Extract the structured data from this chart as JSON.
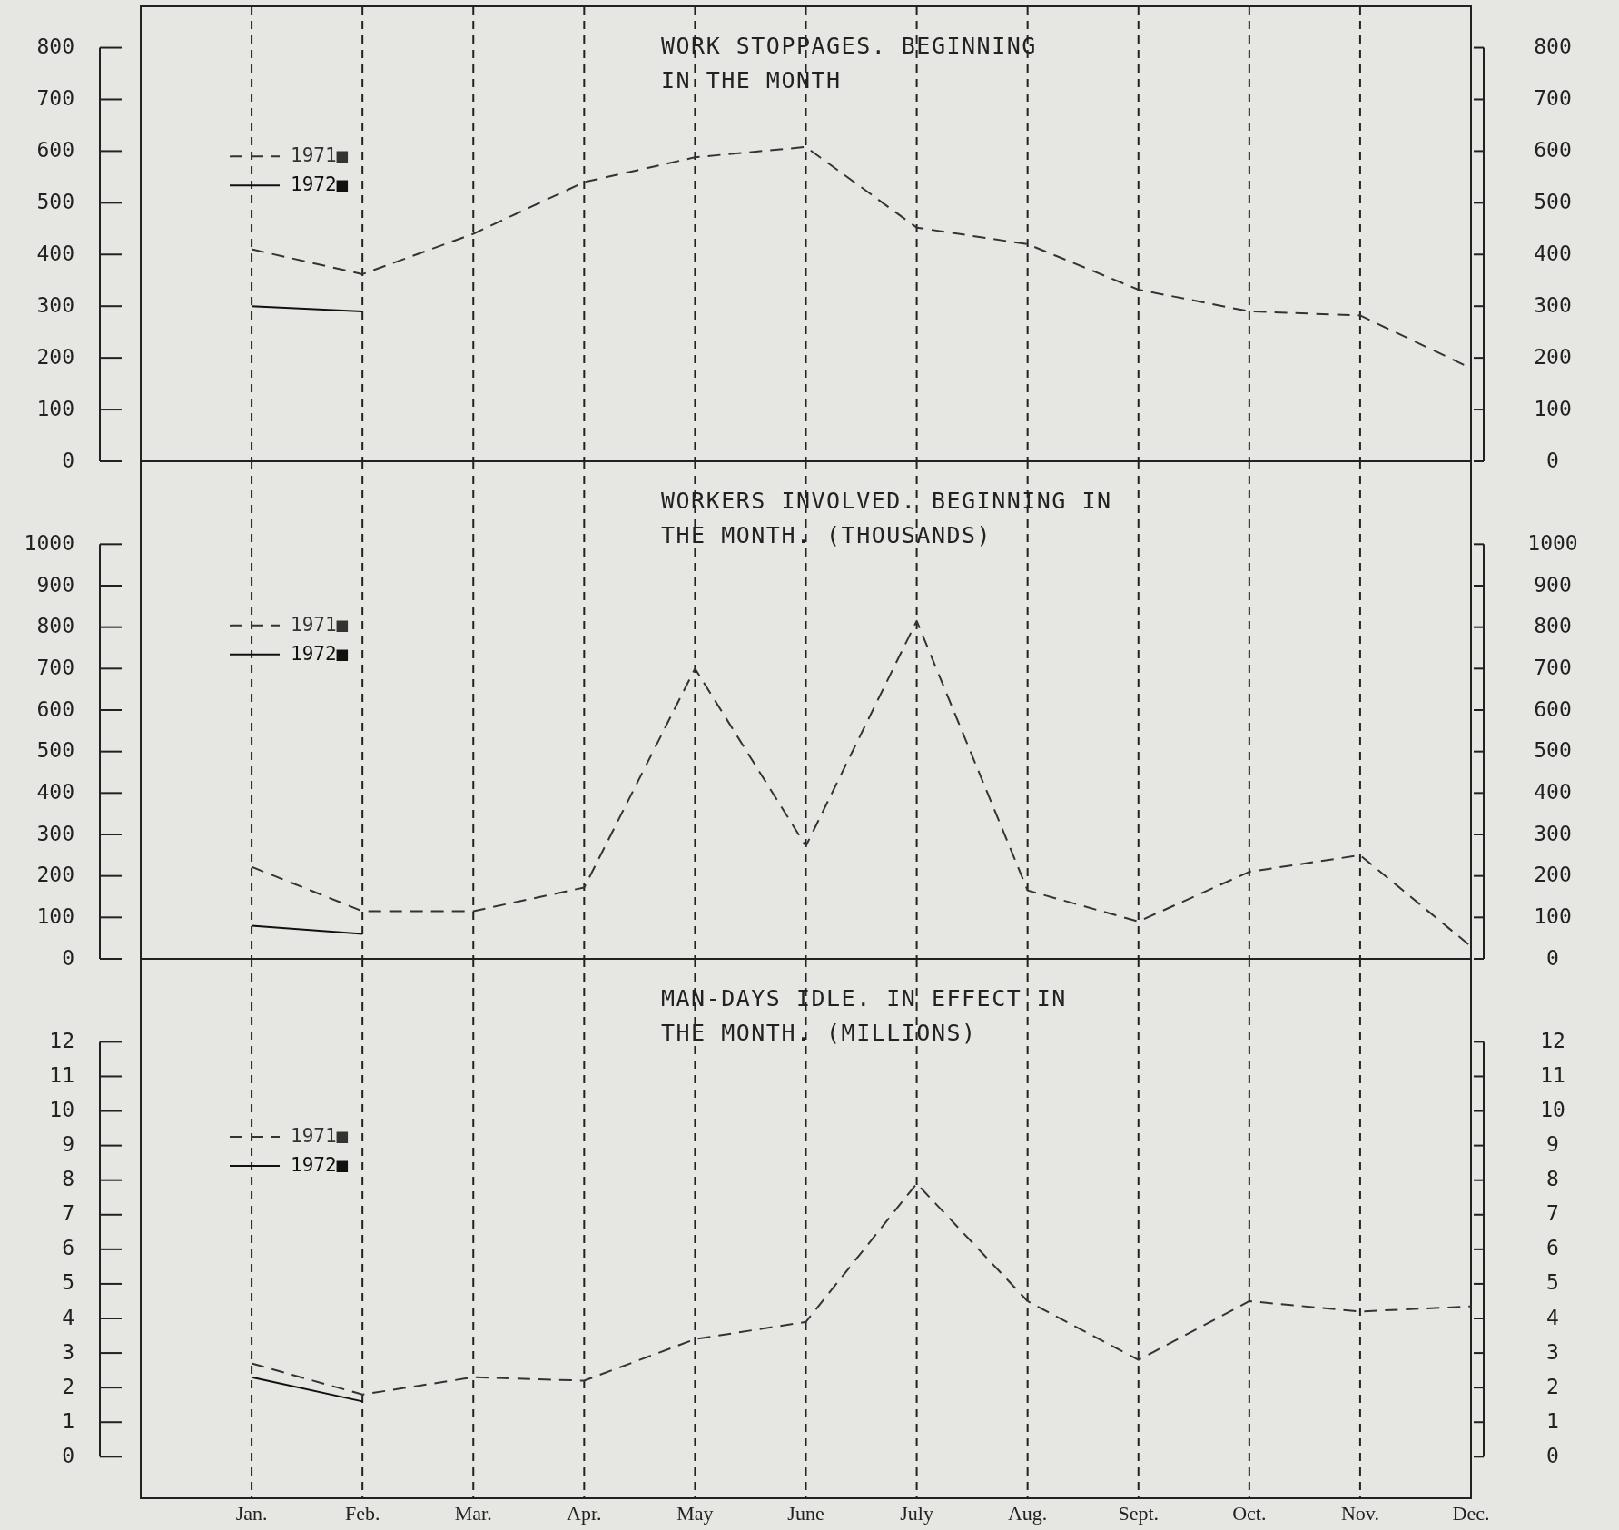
{
  "chart_data": [
    {
      "type": "line",
      "title": "WORK STOPPAGES. BEGINNING\nIN THE MONTH",
      "ylim": [
        0,
        880
      ],
      "yticks": [
        0,
        100,
        200,
        300,
        400,
        500,
        600,
        700,
        800
      ],
      "y2lim": [
        0,
        880
      ],
      "y2ticks": [
        0,
        100,
        200,
        300,
        400,
        500,
        600,
        700,
        800
      ],
      "grid": "x",
      "legend": "top left",
      "tick_labels": "y",
      "series": [
        {
          "name": "1971■",
          "color": "#333333",
          "line_style": "dashed",
          "values": [
            410,
            362,
            440,
            540,
            588,
            608,
            452,
            420,
            332,
            290,
            282,
            180
          ]
        },
        {
          "name": "1972■",
          "color": "#111111",
          "line_style": "solid",
          "values": [
            300,
            290,
            null,
            null,
            null,
            null,
            null,
            null,
            null,
            null,
            null,
            null
          ]
        }
      ]
    },
    {
      "type": "line",
      "title": "WORKERS INVOLVED. BEGINNING IN\nTHE MONTH. (THOUSANDS)",
      "ylim": [
        0,
        1200
      ],
      "yticks": [
        0,
        100,
        200,
        300,
        400,
        500,
        600,
        700,
        800,
        900,
        1000
      ],
      "y2lim": [
        0,
        1200
      ],
      "y2ticks": [
        0,
        100,
        200,
        300,
        400,
        500,
        600,
        700,
        800,
        900,
        1000
      ],
      "grid": "x",
      "legend": "top left",
      "tick_labels": "y",
      "series": [
        {
          "name": "1971■",
          "color": "#333333",
          "line_style": "dashed",
          "values": [
            222,
            115,
            115,
            172,
            700,
            272,
            815,
            165,
            90,
            210,
            250,
            30
          ]
        },
        {
          "name": "1972■",
          "color": "#111111",
          "line_style": "solid",
          "values": [
            80,
            60,
            null,
            null,
            null,
            null,
            null,
            null,
            null,
            null,
            null,
            null
          ]
        }
      ]
    },
    {
      "type": "line",
      "title": "MAN-DAYS IDLE. IN EFFECT IN\nTHE MONTH. (MILLIONS)",
      "categories": [
        "Jan.",
        "Feb.",
        "Mar.",
        "Apr.",
        "May",
        "June",
        "July",
        "Aug.",
        "Sept.",
        "Oct.",
        "Nov.",
        "Dec."
      ],
      "ylim": [
        -1.2,
        14.4
      ],
      "yticks": [
        0,
        1,
        2,
        3,
        4,
        5,
        6,
        7,
        8,
        9,
        10,
        11,
        12
      ],
      "y2lim": [
        -1.2,
        14.4
      ],
      "y2ticks": [
        0,
        1,
        2,
        3,
        4,
        5,
        6,
        7,
        8,
        9,
        10,
        11,
        12
      ],
      "grid": "x",
      "legend": "top left",
      "series": [
        {
          "name": "1971■",
          "color": "#333333",
          "line_style": "dashed",
          "values": [
            2.7,
            1.8,
            2.3,
            2.2,
            3.4,
            3.9,
            7.9,
            4.5,
            2.8,
            4.5,
            4.2,
            4.35
          ]
        },
        {
          "name": "1972■",
          "color": "#111111",
          "line_style": "solid",
          "values": [
            2.3,
            1.6,
            null,
            null,
            null,
            null,
            null,
            null,
            null,
            null,
            null,
            null
          ]
        }
      ]
    }
  ]
}
